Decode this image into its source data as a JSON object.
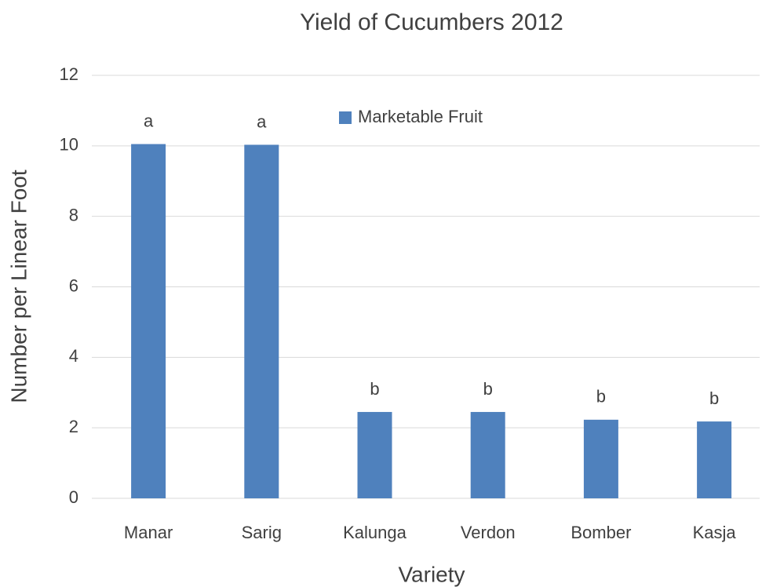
{
  "chart_data": {
    "type": "bar",
    "title": "Yield of Cucumbers 2012",
    "x_label": "Variety",
    "y_label": "Number per Linear Foot",
    "categories": [
      "Manar",
      "Sarig",
      "Kalunga",
      "Verdon",
      "Bomber",
      "Kasja"
    ],
    "series": [
      {
        "name": "Marketable Fruit",
        "color": "#4f81bd",
        "values": [
          10.05,
          10.03,
          2.45,
          2.45,
          2.23,
          2.18
        ]
      }
    ],
    "annotations": [
      "a",
      "a",
      "b",
      "b",
      "b",
      "b"
    ],
    "ylim": [
      0,
      12
    ],
    "yticks": [
      0,
      2,
      4,
      6,
      8,
      10,
      12
    ],
    "grid": true,
    "legend": "top"
  }
}
